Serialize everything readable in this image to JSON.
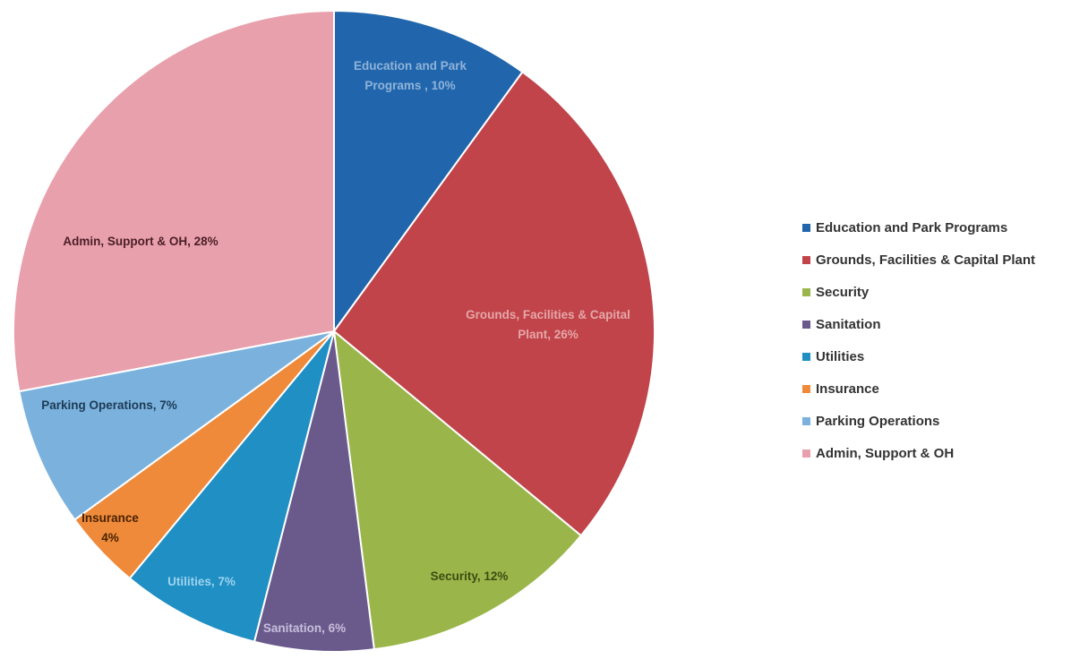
{
  "chart_data": {
    "type": "pie",
    "title": "",
    "legend_position": "right",
    "slices": [
      {
        "name": "Education and Park Programs",
        "value": 10,
        "label_lines": [
          "Education and Park",
          "Programs , 10%"
        ],
        "color": "#2166ac",
        "label_color": "#8fb3d9"
      },
      {
        "name": "Grounds, Facilities & Capital Plant",
        "value": 26,
        "label_lines": [
          "Grounds, Facilities & Capital",
          "Plant, 26%"
        ],
        "color": "#c0444a",
        "label_color": "#e6a6a8"
      },
      {
        "name": "Security",
        "value": 12,
        "label_lines": [
          "Security, 12%"
        ],
        "color": "#9ab64a",
        "label_color": "#3d4d12"
      },
      {
        "name": "Sanitation",
        "value": 6,
        "label_lines": [
          "Sanitation, 6%"
        ],
        "color": "#6a5a8c",
        "label_color": "#c7bedb"
      },
      {
        "name": "Utilities",
        "value": 7,
        "label_lines": [
          "Utilities, 7%"
        ],
        "color": "#1f8fc4",
        "label_color": "#9fd3ee"
      },
      {
        "name": "Insurance",
        "value": 4,
        "label_lines": [
          "Insurance",
          "4%"
        ],
        "color": "#ee8a3a",
        "label_color": "#4a2200"
      },
      {
        "name": "Parking Operations",
        "value": 7,
        "label_lines": [
          "Parking Operations, 7%"
        ],
        "color": "#7bb2dd",
        "label_color": "#1e3a55"
      },
      {
        "name": "Admin, Support & OH",
        "value": 28,
        "label_lines": [
          "Admin, Support & OH, 28%"
        ],
        "color": "#e8a0ac",
        "label_color": "#4a1e26"
      }
    ]
  },
  "legend": {
    "items": [
      {
        "label": "Education and Park Programs",
        "color": "#2166ac"
      },
      {
        "label": "Grounds, Facilities & Capital Plant",
        "color": "#c0444a"
      },
      {
        "label": "Security",
        "color": "#9ab64a"
      },
      {
        "label": "Sanitation",
        "color": "#6a5a8c"
      },
      {
        "label": "Utilities",
        "color": "#1f8fc4"
      },
      {
        "label": "Insurance",
        "color": "#ee8a3a"
      },
      {
        "label": "Parking Operations",
        "color": "#7bb2dd"
      },
      {
        "label": "Admin, Support & OH",
        "color": "#e8a0ac"
      }
    ]
  }
}
